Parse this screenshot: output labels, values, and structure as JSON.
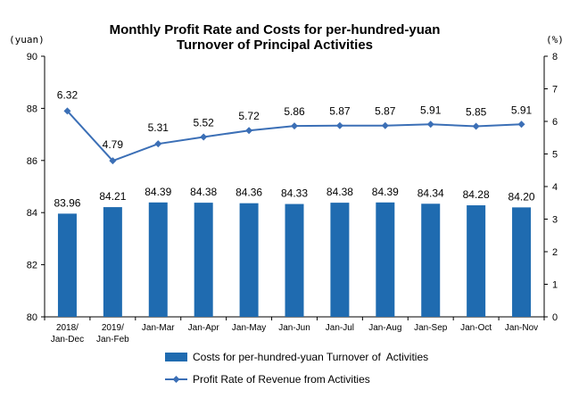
{
  "chart_data": {
    "title_lines": [
      "Monthly Profit Rate and Costs for per-hundred-yuan",
      "Turnover of Principal Activities"
    ],
    "left_axis_unit": "(yuan)",
    "right_axis_unit": "(%)",
    "categories": [
      [
        "2018/",
        "Jan-Dec"
      ],
      [
        "2019/",
        "Jan-Feb"
      ],
      [
        "Jan-Mar"
      ],
      [
        "Jan-Apr"
      ],
      [
        "Jan-May"
      ],
      [
        "Jan-Jun"
      ],
      [
        "Jan-Jul"
      ],
      [
        "Jan-Aug"
      ],
      [
        "Jan-Sep"
      ],
      [
        "Jan-Oct"
      ],
      [
        "Jan-Nov"
      ]
    ],
    "series": [
      {
        "name": "Costs for per-hundred-yuan Turnover of  Activities",
        "type": "bar",
        "axis": "left",
        "color": "#1f6bb0",
        "values": [
          83.96,
          84.21,
          84.39,
          84.38,
          84.36,
          84.33,
          84.38,
          84.39,
          84.34,
          84.28,
          84.2
        ],
        "labels": [
          "83.96",
          "84.21",
          "84.39",
          "84.38",
          "84.36",
          "84.33",
          "84.38",
          "84.39",
          "84.34",
          "84.28",
          "84.20"
        ]
      },
      {
        "name": "Profit Rate of Revenue from Activities",
        "type": "line",
        "axis": "right",
        "color": "#3b6fb6",
        "values": [
          6.32,
          4.79,
          5.31,
          5.52,
          5.72,
          5.86,
          5.87,
          5.87,
          5.91,
          5.85,
          5.91
        ],
        "labels": [
          "6.32",
          "4.79",
          "5.31",
          "5.52",
          "5.72",
          "5.86",
          "5.87",
          "5.87",
          "5.91",
          "5.85",
          "5.91"
        ]
      }
    ],
    "left_axis": {
      "min": 80,
      "max": 90,
      "ticks": [
        "80",
        "82",
        "84",
        "86",
        "88",
        "90"
      ]
    },
    "right_axis": {
      "min": 0,
      "max": 8,
      "ticks": [
        "0",
        "1",
        "2",
        "3",
        "4",
        "5",
        "6",
        "7",
        "8"
      ]
    },
    "grid": false,
    "legend_position": "bottom"
  }
}
